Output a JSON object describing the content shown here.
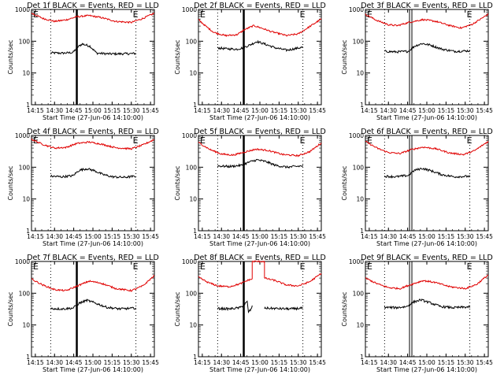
{
  "figure": {
    "background": "#ffffff",
    "series_colors": {
      "events": "#000000",
      "lld": "#e00000"
    },
    "line_color": "#000000"
  },
  "chart_data": [
    {
      "type": "line",
      "title": "Det 1f BLACK = Events, RED = LLD",
      "xlabel": "Start Time (27-Jun-06 14:10:00)",
      "ylabel": "Counts/sec",
      "yscale": "log",
      "ylim": [
        1,
        1000
      ],
      "xlim": [
        14.2,
        15.8
      ],
      "yticks": [
        "1",
        "10",
        "100",
        "1000"
      ],
      "xticks": [
        "14:15",
        "14:30",
        "14:45",
        "15:00",
        "15:15",
        "15:30",
        "15:45"
      ],
      "grid_x": "dotted",
      "marker_left": "E",
      "marker_right": "E",
      "bold_line": "single",
      "bold_x": 14.79,
      "dotted_x": [
        14.45,
        15.56
      ],
      "series": [
        {
          "name": "Events",
          "x": [
            14.45,
            14.6,
            14.74,
            14.8,
            14.86,
            14.96,
            15.05,
            15.2,
            15.36,
            15.56
          ],
          "values": [
            43,
            42,
            44,
            65,
            82,
            70,
            42,
            40,
            40,
            41
          ]
        },
        {
          "name": "LLD",
          "x": [
            14.2,
            14.35,
            14.5,
            14.65,
            14.79,
            14.95,
            15.1,
            15.3,
            15.5,
            15.65,
            15.8
          ],
          "values": [
            760,
            520,
            420,
            470,
            590,
            640,
            560,
            420,
            390,
            520,
            760
          ]
        }
      ]
    },
    {
      "type": "line",
      "title": "Det 2f BLACK = Events, RED = LLD",
      "xlabel": "Start Time (27-Jun-06 14:10:00)",
      "ylabel": "Counts/sec",
      "yscale": "log",
      "ylim": [
        1,
        1000
      ],
      "xlim": [
        14.2,
        15.8
      ],
      "yticks": [
        "1",
        "10",
        "100",
        "1000"
      ],
      "xticks": [
        "14:15",
        "14:30",
        "14:45",
        "15:00",
        "15:15",
        "15:30",
        "15:45"
      ],
      "grid_x": "dotted",
      "marker_left": "E",
      "marker_right": "E",
      "bold_line": "single",
      "bold_x": 14.79,
      "dotted_x": [
        14.45,
        15.56
      ],
      "series": [
        {
          "name": "Events",
          "x": [
            14.45,
            14.55,
            14.7,
            14.78,
            14.88,
            14.96,
            15.06,
            15.2,
            15.35,
            15.56
          ],
          "values": [
            62,
            58,
            56,
            62,
            78,
            98,
            82,
            62,
            52,
            65
          ]
        },
        {
          "name": "LLD",
          "x": [
            14.2,
            14.3,
            14.4,
            14.55,
            14.7,
            14.8,
            14.92,
            15.02,
            15.15,
            15.35,
            15.5,
            15.65,
            15.8
          ],
          "values": [
            480,
            290,
            190,
            150,
            160,
            230,
            310,
            260,
            200,
            150,
            170,
            290,
            500
          ]
        }
      ]
    },
    {
      "type": "line",
      "title": "Det 3f BLACK = Events, RED = LLD",
      "xlabel": "Start Time (27-Jun-06 14:10:00)",
      "ylabel": "Counts/sec",
      "yscale": "log",
      "ylim": [
        1,
        1000
      ],
      "xlim": [
        14.2,
        15.8
      ],
      "yticks": [
        "1",
        "10",
        "100",
        "1000"
      ],
      "xticks": [
        "14:15",
        "14:30",
        "14:45",
        "15:00",
        "15:15",
        "15:30",
        "15:45"
      ],
      "grid_x": "dotted",
      "marker_left": "E",
      "marker_right": "E",
      "bold_line": "double",
      "bold_x": 14.79,
      "dotted_x": [
        14.45,
        15.56
      ],
      "series": [
        {
          "name": "Events",
          "x": [
            14.45,
            14.6,
            14.76,
            14.84,
            14.94,
            15.05,
            15.2,
            15.36,
            15.56
          ],
          "values": [
            48,
            46,
            48,
            70,
            85,
            75,
            56,
            48,
            50
          ]
        },
        {
          "name": "LLD",
          "x": [
            14.2,
            14.35,
            14.5,
            14.62,
            14.78,
            14.95,
            15.12,
            15.3,
            15.45,
            15.6,
            15.8
          ],
          "values": [
            700,
            450,
            330,
            310,
            400,
            480,
            420,
            310,
            260,
            350,
            710
          ]
        }
      ]
    },
    {
      "type": "line",
      "title": "Det 4f BLACK = Events, RED = LLD",
      "xlabel": "Start Time (27-Jun-06 14:10:00)",
      "ylabel": "Counts/sec",
      "yscale": "log",
      "ylim": [
        1,
        1000
      ],
      "xlim": [
        14.2,
        15.8
      ],
      "yticks": [
        "1",
        "10",
        "100",
        "1000"
      ],
      "xticks": [
        "14:15",
        "14:30",
        "14:45",
        "15:00",
        "15:15",
        "15:30",
        "15:45"
      ],
      "grid_x": "dotted",
      "marker_left": "E",
      "marker_right": "E",
      "bold_line": "none",
      "bold_x": 14.79,
      "dotted_x": [
        14.45,
        15.56
      ],
      "series": [
        {
          "name": "Events",
          "x": [
            14.45,
            14.6,
            14.74,
            14.82,
            14.92,
            15.02,
            15.12,
            15.25,
            15.4,
            15.56
          ],
          "values": [
            52,
            50,
            54,
            80,
            90,
            78,
            60,
            50,
            48,
            52
          ]
        },
        {
          "name": "LLD",
          "x": [
            14.2,
            14.35,
            14.5,
            14.65,
            14.79,
            14.95,
            15.1,
            15.3,
            15.5,
            15.65,
            15.8
          ],
          "values": [
            760,
            520,
            400,
            420,
            560,
            620,
            540,
            410,
            380,
            500,
            750
          ]
        }
      ]
    },
    {
      "type": "line",
      "title": "Det 5f BLACK = Events, RED = LLD",
      "xlabel": "Start Time (27-Jun-06 14:10:00)",
      "ylabel": "Counts/sec",
      "yscale": "log",
      "ylim": [
        1,
        1000
      ],
      "xlim": [
        14.2,
        15.8
      ],
      "yticks": [
        "1",
        "10",
        "100",
        "1000"
      ],
      "xticks": [
        "14:15",
        "14:30",
        "14:45",
        "15:00",
        "15:15",
        "15:30",
        "15:45"
      ],
      "grid_x": "dotted",
      "marker_left": "E",
      "marker_right": "E",
      "bold_line": "single",
      "bold_x": 14.79,
      "dotted_x": [
        14.45,
        15.56
      ],
      "series": [
        {
          "name": "Events",
          "x": [
            14.45,
            14.6,
            14.76,
            14.86,
            14.96,
            15.08,
            15.2,
            15.35,
            15.56
          ],
          "values": [
            110,
            105,
            115,
            145,
            170,
            150,
            115,
            100,
            110
          ]
        },
        {
          "name": "LLD",
          "x": [
            14.2,
            14.35,
            14.5,
            14.65,
            14.8,
            14.95,
            15.1,
            15.3,
            15.5,
            15.65,
            15.8
          ],
          "values": [
            600,
            360,
            260,
            240,
            300,
            370,
            340,
            250,
            230,
            310,
            580
          ]
        }
      ]
    },
    {
      "type": "line",
      "title": "Det 6f BLACK = Events, RED = LLD",
      "xlabel": "Start Time (27-Jun-06 14:10:00)",
      "ylabel": "Counts/sec",
      "yscale": "log",
      "ylim": [
        1,
        1000
      ],
      "xlim": [
        14.2,
        15.8
      ],
      "yticks": [
        "1",
        "10",
        "100",
        "1000"
      ],
      "xticks": [
        "14:15",
        "14:30",
        "14:45",
        "15:00",
        "15:15",
        "15:30",
        "15:45"
      ],
      "grid_x": "dotted",
      "marker_left": "E",
      "marker_right": "E",
      "bold_line": "double",
      "bold_x": 14.79,
      "dotted_x": [
        14.45,
        15.56
      ],
      "series": [
        {
          "name": "Events",
          "x": [
            14.45,
            14.6,
            14.76,
            14.84,
            14.94,
            15.05,
            15.2,
            15.36,
            15.56
          ],
          "values": [
            52,
            50,
            55,
            80,
            92,
            78,
            58,
            50,
            52
          ]
        },
        {
          "name": "LLD",
          "x": [
            14.2,
            14.35,
            14.5,
            14.65,
            14.8,
            14.95,
            15.12,
            15.3,
            15.48,
            15.62,
            15.8
          ],
          "values": [
            650,
            400,
            290,
            270,
            360,
            430,
            380,
            280,
            250,
            330,
            650
          ]
        }
      ]
    },
    {
      "type": "line",
      "title": "Det 7f BLACK = Events, RED = LLD",
      "xlabel": "Start Time (27-Jun-06 14:10:00)",
      "ylabel": "Counts/sec",
      "yscale": "log",
      "ylim": [
        1,
        1000
      ],
      "xlim": [
        14.2,
        15.8
      ],
      "yticks": [
        "1",
        "10",
        "100",
        "1000"
      ],
      "xticks": [
        "14:15",
        "14:30",
        "14:45",
        "15:00",
        "15:15",
        "15:30",
        "15:45"
      ],
      "grid_x": "dotted",
      "marker_left": "E",
      "marker_right": "E",
      "bold_line": "single",
      "bold_x": 14.79,
      "dotted_x": [
        14.45,
        15.56
      ],
      "series": [
        {
          "name": "Events",
          "x": [
            14.45,
            14.6,
            14.74,
            14.82,
            14.92,
            15.04,
            15.18,
            15.35,
            15.56
          ],
          "values": [
            33,
            32,
            34,
            48,
            60,
            48,
            36,
            32,
            34
          ]
        },
        {
          "name": "LLD",
          "x": [
            14.2,
            14.35,
            14.5,
            14.65,
            14.8,
            14.95,
            15.1,
            15.3,
            15.5,
            15.65,
            15.8
          ],
          "values": [
            280,
            180,
            130,
            120,
            170,
            240,
            210,
            140,
            120,
            170,
            360
          ]
        }
      ]
    },
    {
      "type": "line",
      "title": "Det 8f BLACK = Events, RED = LLD",
      "xlabel": "Start Time (27-Jun-06 14:10:00)",
      "ylabel": "Counts/sec",
      "yscale": "log",
      "ylim": [
        1,
        1000
      ],
      "xlim": [
        14.2,
        15.8
      ],
      "yticks": [
        "1",
        "10",
        "100",
        "1000"
      ],
      "xticks": [
        "14:15",
        "14:30",
        "14:45",
        "15:00",
        "15:15",
        "15:30",
        "15:45"
      ],
      "grid_x": "dotted",
      "marker_left": "E",
      "marker_right": "E",
      "bold_line": "single",
      "bold_x": 14.79,
      "dotted_x": [
        14.45,
        15.56
      ],
      "series": [
        {
          "name": "Events",
          "x": [
            14.45,
            14.6,
            14.74,
            14.8,
            14.84,
            14.845,
            14.88,
            14.9
          ],
          "values": [
            33,
            32,
            35,
            45,
            55,
            25,
            30,
            38
          ],
          "segment2_x": [
            15.06,
            15.2,
            15.4,
            15.56
          ],
          "segment2_values": [
            34,
            33,
            32,
            34
          ]
        },
        {
          "name": "LLD",
          "x": [
            14.2,
            14.32,
            14.45,
            14.6,
            14.75,
            14.85,
            14.9,
            14.9,
            15.06,
            15.06,
            15.2,
            15.35,
            15.5,
            15.65,
            15.8
          ],
          "values": [
            320,
            220,
            170,
            160,
            200,
            260,
            280,
            1000,
            1000,
            300,
            250,
            180,
            170,
            230,
            420
          ]
        }
      ]
    },
    {
      "type": "line",
      "title": "Det 9f BLACK = Events, RED = LLD",
      "xlabel": "Start Time (27-Jun-06 14:10:00)",
      "ylabel": "Counts/sec",
      "yscale": "log",
      "ylim": [
        1,
        1000
      ],
      "xlim": [
        14.2,
        15.8
      ],
      "yticks": [
        "1",
        "10",
        "100",
        "1000"
      ],
      "xticks": [
        "14:15",
        "14:30",
        "14:45",
        "15:00",
        "15:15",
        "15:30",
        "15:45"
      ],
      "grid_x": "dotted",
      "marker_left": "E",
      "marker_right": "E",
      "bold_line": "double",
      "bold_x": 14.79,
      "dotted_x": [
        14.45,
        15.56
      ],
      "series": [
        {
          "name": "Events",
          "x": [
            14.45,
            14.6,
            14.74,
            14.82,
            14.92,
            15.04,
            15.18,
            15.35,
            15.56
          ],
          "values": [
            36,
            35,
            38,
            52,
            62,
            50,
            38,
            35,
            37
          ]
        },
        {
          "name": "LLD",
          "x": [
            14.2,
            14.35,
            14.5,
            14.65,
            14.8,
            14.95,
            15.1,
            15.3,
            15.5,
            15.65,
            15.8
          ],
          "values": [
            300,
            200,
            150,
            140,
            190,
            250,
            220,
            160,
            140,
            190,
            380
          ]
        }
      ]
    }
  ]
}
